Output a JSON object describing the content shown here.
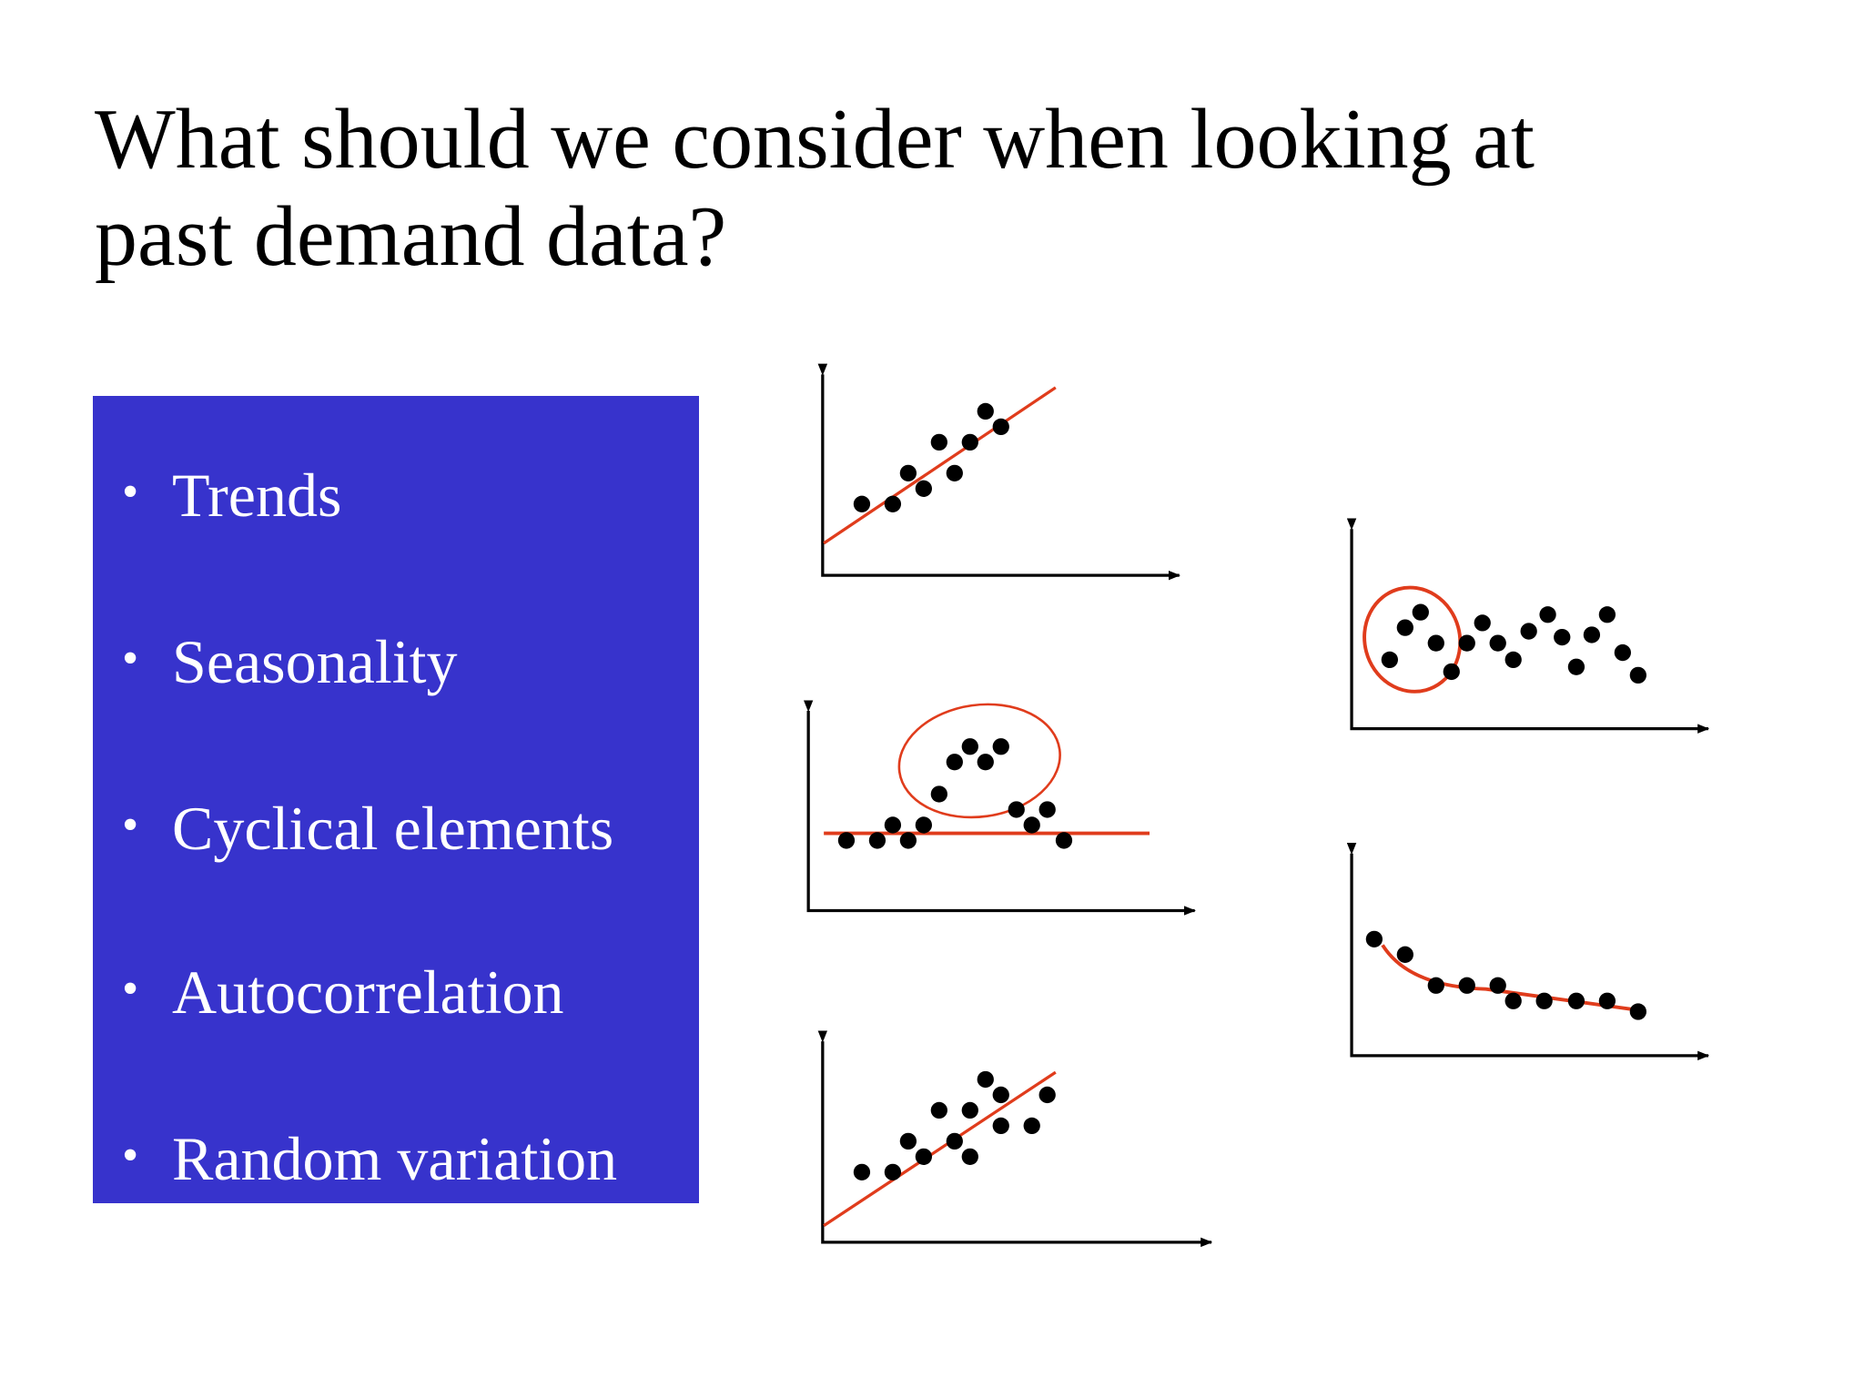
{
  "title_lines": [
    "What should we consider when looking at",
    "past demand data?"
  ],
  "bullets": [
    "Trends",
    "Seasonality",
    "Cyclical elements",
    "Autocorrelation",
    "Random variation"
  ]
}
